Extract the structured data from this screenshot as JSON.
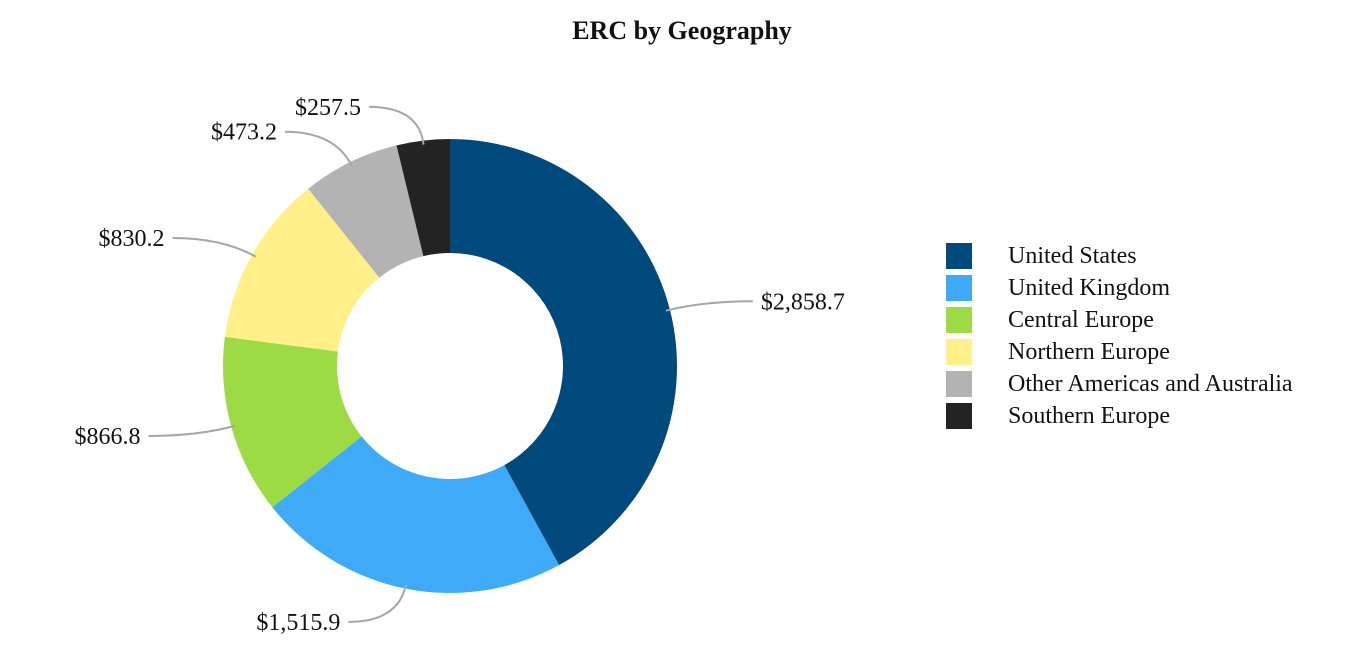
{
  "chart_data": {
    "type": "pie",
    "donut": true,
    "title": "ERC by Geography",
    "categories": [
      "United States",
      "United Kingdom",
      "Central Europe",
      "Northern Europe",
      "Other Americas and Australia",
      "Southern Europe"
    ],
    "values": [
      2858.7,
      1515.9,
      866.8,
      830.2,
      473.2,
      257.5
    ],
    "value_labels": [
      "$2,858.7",
      "$1,515.9",
      "$866.8",
      "$830.2",
      "$473.2",
      "$257.5"
    ],
    "colors": [
      "#00497c",
      "#3fabf8",
      "#9ddb45",
      "#fff08a",
      "#b3b3b3",
      "#232323"
    ],
    "legend_position": "right",
    "start_angle": "top, clockwise"
  }
}
